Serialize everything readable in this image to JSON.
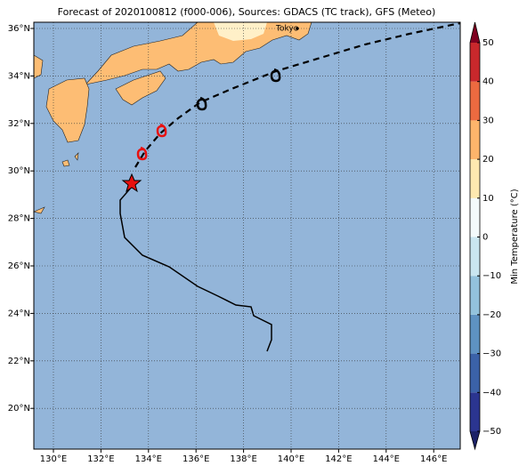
{
  "title": "Forecast of 2020100812 (f000-006), Sources: GDACS (TC track), GFS (Meteo)",
  "city": "Tokyo",
  "lon_ticks": [
    {
      "value": 130,
      "label": "130°E"
    },
    {
      "value": 132,
      "label": "132°E"
    },
    {
      "value": 134,
      "label": "134°E"
    },
    {
      "value": 136,
      "label": "136°E"
    },
    {
      "value": 138,
      "label": "138°E"
    },
    {
      "value": 140,
      "label": "140°E"
    },
    {
      "value": 142,
      "label": "142°E"
    },
    {
      "value": 144,
      "label": "144°E"
    },
    {
      "value": 146,
      "label": "146°E"
    }
  ],
  "lat_ticks": [
    {
      "value": 20,
      "label": "20°N"
    },
    {
      "value": 22,
      "label": "22°N"
    },
    {
      "value": 24,
      "label": "24°N"
    },
    {
      "value": 26,
      "label": "26°N"
    },
    {
      "value": 28,
      "label": "28°N"
    },
    {
      "value": 30,
      "label": "30°N"
    },
    {
      "value": 32,
      "label": "32°N"
    },
    {
      "value": 34,
      "label": "34°N"
    },
    {
      "value": 36,
      "label": "36°N"
    }
  ],
  "colorbar": {
    "label": "Min Temperature (°C)",
    "ticks": [
      {
        "value": -50,
        "label": "−50"
      },
      {
        "value": -40,
        "label": "−40"
      },
      {
        "value": -30,
        "label": "−30"
      },
      {
        "value": -20,
        "label": "−20"
      },
      {
        "value": -10,
        "label": "−10"
      },
      0,
      10,
      20,
      30,
      40,
      50
    ],
    "colors": [
      "#2b3590",
      "#3b62a8",
      "#5e92c2",
      "#93c2dc",
      "#c9e6f0",
      "#f3fafb",
      "#fde9b0",
      "#fdb46b",
      "#ec6a40",
      "#c8282c"
    ],
    "under": "#1c2268",
    "over": "#7f0020"
  }
}
